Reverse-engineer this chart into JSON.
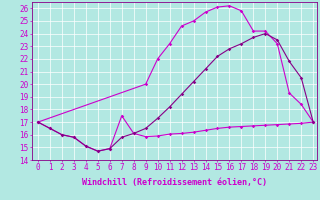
{
  "bg_color": "#b2e8e2",
  "line_color": "#cc00cc",
  "line_color2": "#880088",
  "xlabel": "Windchill (Refroidissement éolien,°C)",
  "xlim_min": -0.5,
  "xlim_max": 23.3,
  "ylim_min": 14,
  "ylim_max": 26.5,
  "yticks": [
    14,
    15,
    16,
    17,
    18,
    19,
    20,
    21,
    22,
    23,
    24,
    25,
    26
  ],
  "xticks": [
    0,
    1,
    2,
    3,
    4,
    5,
    6,
    7,
    8,
    9,
    10,
    11,
    12,
    13,
    14,
    15,
    16,
    17,
    18,
    19,
    20,
    21,
    22,
    23
  ],
  "line1_x": [
    0,
    1,
    2,
    3,
    4,
    5,
    6,
    7,
    8,
    9,
    10,
    11,
    12,
    13,
    14,
    15,
    16,
    17,
    18,
    19,
    20,
    21,
    22,
    23
  ],
  "line1_y": [
    17.0,
    16.5,
    16.0,
    15.8,
    15.1,
    14.7,
    14.9,
    17.5,
    16.1,
    15.85,
    15.9,
    16.05,
    16.1,
    16.2,
    16.35,
    16.5,
    16.6,
    16.65,
    16.7,
    16.75,
    16.8,
    16.85,
    16.9,
    17.0
  ],
  "line2_x": [
    0,
    9,
    10,
    11,
    12,
    13,
    14,
    15,
    16,
    17,
    18,
    19,
    20,
    21,
    22,
    23
  ],
  "line2_y": [
    17.0,
    20.0,
    22.0,
    23.2,
    24.6,
    25.0,
    25.7,
    26.1,
    26.2,
    25.8,
    24.2,
    24.2,
    23.2,
    19.3,
    18.4,
    17.0
  ],
  "line3_x": [
    0,
    1,
    2,
    3,
    4,
    5,
    6,
    7,
    8,
    9,
    10,
    11,
    12,
    13,
    14,
    15,
    16,
    17,
    18,
    19,
    20,
    21,
    22,
    23
  ],
  "line3_y": [
    17.0,
    16.5,
    16.0,
    15.8,
    15.1,
    14.7,
    14.9,
    15.8,
    16.1,
    16.5,
    17.3,
    18.2,
    19.2,
    20.2,
    21.2,
    22.2,
    22.8,
    23.2,
    23.7,
    24.0,
    23.5,
    21.8,
    20.5,
    17.0
  ],
  "grid_color": "#ffffff",
  "tick_fontsize": 5.5,
  "xlabel_fontsize": 6.0,
  "line_width": 0.8,
  "marker_size": 1.8
}
